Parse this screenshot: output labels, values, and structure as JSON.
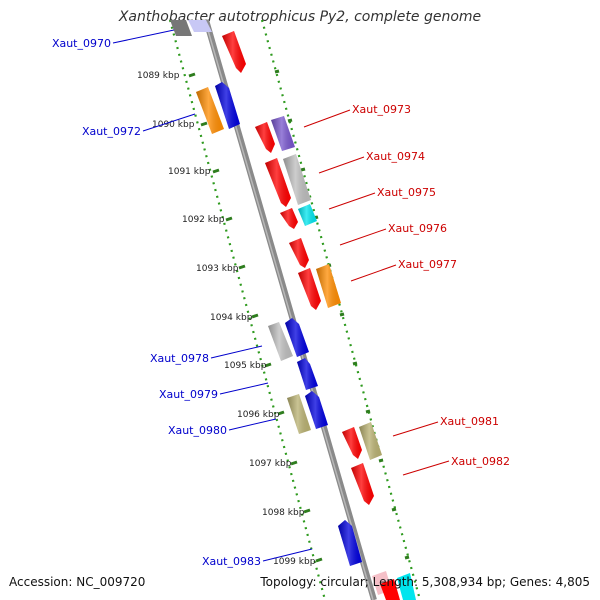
{
  "title": "Xanthobacter autotrophicus Py2, complete genome",
  "accession": "Accession: NC_009720",
  "summary": "Topology: circular; Length: 5,308,934 bp; Genes: 4,805",
  "colors": {
    "backbone": "#888888",
    "ticks_major": "#2e7d1e",
    "ticks_minor": "#2e9a1e",
    "label_forward": "#cc0000",
    "label_reverse": "#0000cc"
  },
  "kbp_labels": [
    "1089 kbp",
    "1090 kbp",
    "1091 kbp",
    "1092 kbp",
    "1093 kbp",
    "1094 kbp",
    "1095 kbp",
    "1096 kbp",
    "1097 kbp",
    "1098 kbp",
    "1099 kbp"
  ],
  "gene_labels_reverse": [
    "Xaut_0970",
    "Xaut_0972",
    "Xaut_0978",
    "Xaut_0979",
    "Xaut_0980",
    "Xaut_0983"
  ],
  "gene_labels_forward": [
    "Xaut_0973",
    "Xaut_0974",
    "Xaut_0975",
    "Xaut_0976",
    "Xaut_0977",
    "Xaut_0981",
    "Xaut_0982"
  ]
}
